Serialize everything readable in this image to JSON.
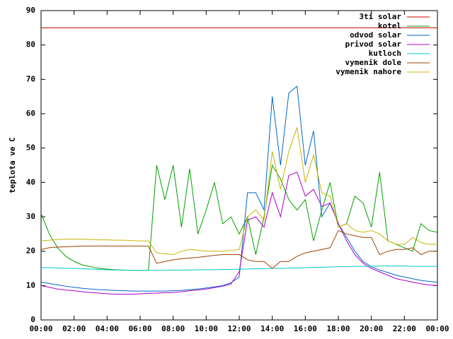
{
  "chart_data": {
    "type": "line",
    "ylabel": "teplota ve C",
    "x": [
      0,
      0.5,
      1,
      1.5,
      2,
      2.5,
      3,
      3.5,
      4,
      4.5,
      5,
      5.5,
      6,
      6.5,
      7,
      7.5,
      8,
      8.5,
      9,
      9.5,
      10,
      10.5,
      11,
      11.5,
      12,
      12.5,
      13,
      13.5,
      14,
      14.5,
      15,
      15.5,
      16,
      16.5,
      17,
      17.5,
      18,
      18.5,
      19,
      19.5,
      20,
      20.5,
      21,
      21.5,
      22,
      22.5,
      23,
      23.5,
      24
    ],
    "xlim": [
      0,
      24
    ],
    "xticks": [
      {
        "value": 0,
        "label": "00:00"
      },
      {
        "value": 2,
        "label": "02:00"
      },
      {
        "value": 4,
        "label": "04:00"
      },
      {
        "value": 6,
        "label": "06:00"
      },
      {
        "value": 8,
        "label": "08:00"
      },
      {
        "value": 10,
        "label": "10:00"
      },
      {
        "value": 12,
        "label": "12:00"
      },
      {
        "value": 14,
        "label": "14:00"
      },
      {
        "value": 16,
        "label": "16:00"
      },
      {
        "value": 18,
        "label": "18:00"
      },
      {
        "value": 20,
        "label": "20:00"
      },
      {
        "value": 22,
        "label": "22:00"
      },
      {
        "value": 24,
        "label": "00:00"
      }
    ],
    "ylim": [
      0,
      90
    ],
    "yticks": [
      0,
      10,
      20,
      30,
      40,
      50,
      60,
      70,
      80,
      90
    ],
    "legend": "top-right",
    "series": [
      {
        "name": "3ti solar",
        "color": "#cc0000",
        "values": [
          85,
          85,
          85,
          85,
          85,
          85,
          85,
          85,
          85,
          85,
          85,
          85,
          85,
          85,
          85,
          85,
          85,
          85,
          85,
          85,
          85,
          85,
          85,
          85,
          85,
          85,
          85,
          85,
          85,
          85,
          85,
          85,
          85,
          85,
          85,
          85,
          85,
          85,
          85,
          85,
          85,
          85,
          85,
          85,
          85,
          85,
          85,
          85,
          85
        ]
      },
      {
        "name": "kotel",
        "color": "#00a000",
        "values": [
          31,
          25,
          21,
          18.5,
          17,
          16,
          15.5,
          15,
          14.8,
          14.6,
          14.5,
          14.4,
          14.4,
          14.4,
          45,
          35,
          45,
          27,
          44,
          25,
          32,
          40,
          28,
          30,
          25,
          30,
          19,
          30,
          45,
          41,
          35,
          32,
          35,
          23,
          32,
          40,
          27,
          28,
          36,
          34,
          27,
          43,
          23,
          22,
          21,
          20,
          28,
          26,
          25.5
        ]
      },
      {
        "name": "odvod solar",
        "color": "#0066cc",
        "values": [
          11,
          10.6,
          10.2,
          9.8,
          9.5,
          9.2,
          9,
          8.8,
          8.7,
          8.6,
          8.5,
          8.4,
          8.4,
          8.4,
          8.4,
          8.4,
          8.5,
          8.6,
          8.8,
          9,
          9.3,
          9.6,
          10,
          10.8,
          12.5,
          37,
          37,
          32,
          65,
          45,
          66,
          68,
          45,
          55,
          30,
          34,
          28,
          24,
          20,
          17,
          15.5,
          14.5,
          13.8,
          13,
          12.5,
          12,
          11.5,
          11.2,
          11
        ]
      },
      {
        "name": "privod solar",
        "color": "#b000c8",
        "values": [
          10,
          9.5,
          9,
          8.7,
          8.5,
          8.2,
          8,
          7.8,
          7.6,
          7.5,
          7.5,
          7.5,
          7.6,
          7.7,
          7.8,
          7.9,
          8,
          8.2,
          8.5,
          8.7,
          9,
          9.4,
          9.8,
          10.5,
          14,
          29,
          30,
          27,
          37,
          30,
          42,
          43,
          36,
          38,
          33,
          34,
          28,
          23,
          19,
          16.5,
          15,
          14,
          13,
          12,
          11.5,
          11,
          10.5,
          10.2,
          10
        ]
      },
      {
        "name": "kutloch",
        "color": "#00c8c8",
        "values": [
          15.2,
          15.2,
          15.1,
          15,
          15,
          14.9,
          14.8,
          14.7,
          14.6,
          14.5,
          14.5,
          14.4,
          14.4,
          14.4,
          14.4,
          14.4,
          14.5,
          14.5,
          14.5,
          14.6,
          14.6,
          14.6,
          14.7,
          14.7,
          14.8,
          14.8,
          14.9,
          14.9,
          15,
          15,
          15.1,
          15.1,
          15.2,
          15.3,
          15.3,
          15.4,
          15.5,
          15.5,
          15.6,
          15.6,
          15.6,
          15.7,
          15.7,
          15.7,
          15.7,
          15.6,
          15.6,
          15.6,
          15.6
        ]
      },
      {
        "name": "vymenik dole",
        "color": "#a04000",
        "values": [
          20.5,
          21,
          21.2,
          21.3,
          21.4,
          21.5,
          21.5,
          21.5,
          21.5,
          21.5,
          21.5,
          21.5,
          21.5,
          21.5,
          16.5,
          17,
          17.5,
          17.8,
          18,
          18.2,
          18.5,
          18.8,
          19,
          19,
          19,
          17.5,
          17,
          17,
          15,
          17,
          17,
          18.5,
          19.5,
          20,
          20.5,
          21,
          26,
          25,
          24.5,
          24,
          24,
          19,
          20,
          20.5,
          20.5,
          21,
          19,
          20,
          20
        ]
      },
      {
        "name": "vymenik nahore",
        "color": "#c8b400",
        "values": [
          23,
          23.2,
          23.4,
          23.5,
          23.5,
          23.5,
          23.4,
          23.3,
          23.3,
          23.2,
          23.2,
          23.1,
          23,
          23,
          19.5,
          19.3,
          19,
          20,
          20.5,
          20.3,
          20,
          20,
          20,
          20.2,
          20.5,
          30,
          32,
          29,
          49,
          38,
          49,
          56,
          40,
          48,
          37,
          36,
          27,
          28,
          26,
          25.5,
          26,
          25,
          23,
          22,
          22,
          24,
          22.5,
          22,
          22
        ]
      }
    ]
  }
}
